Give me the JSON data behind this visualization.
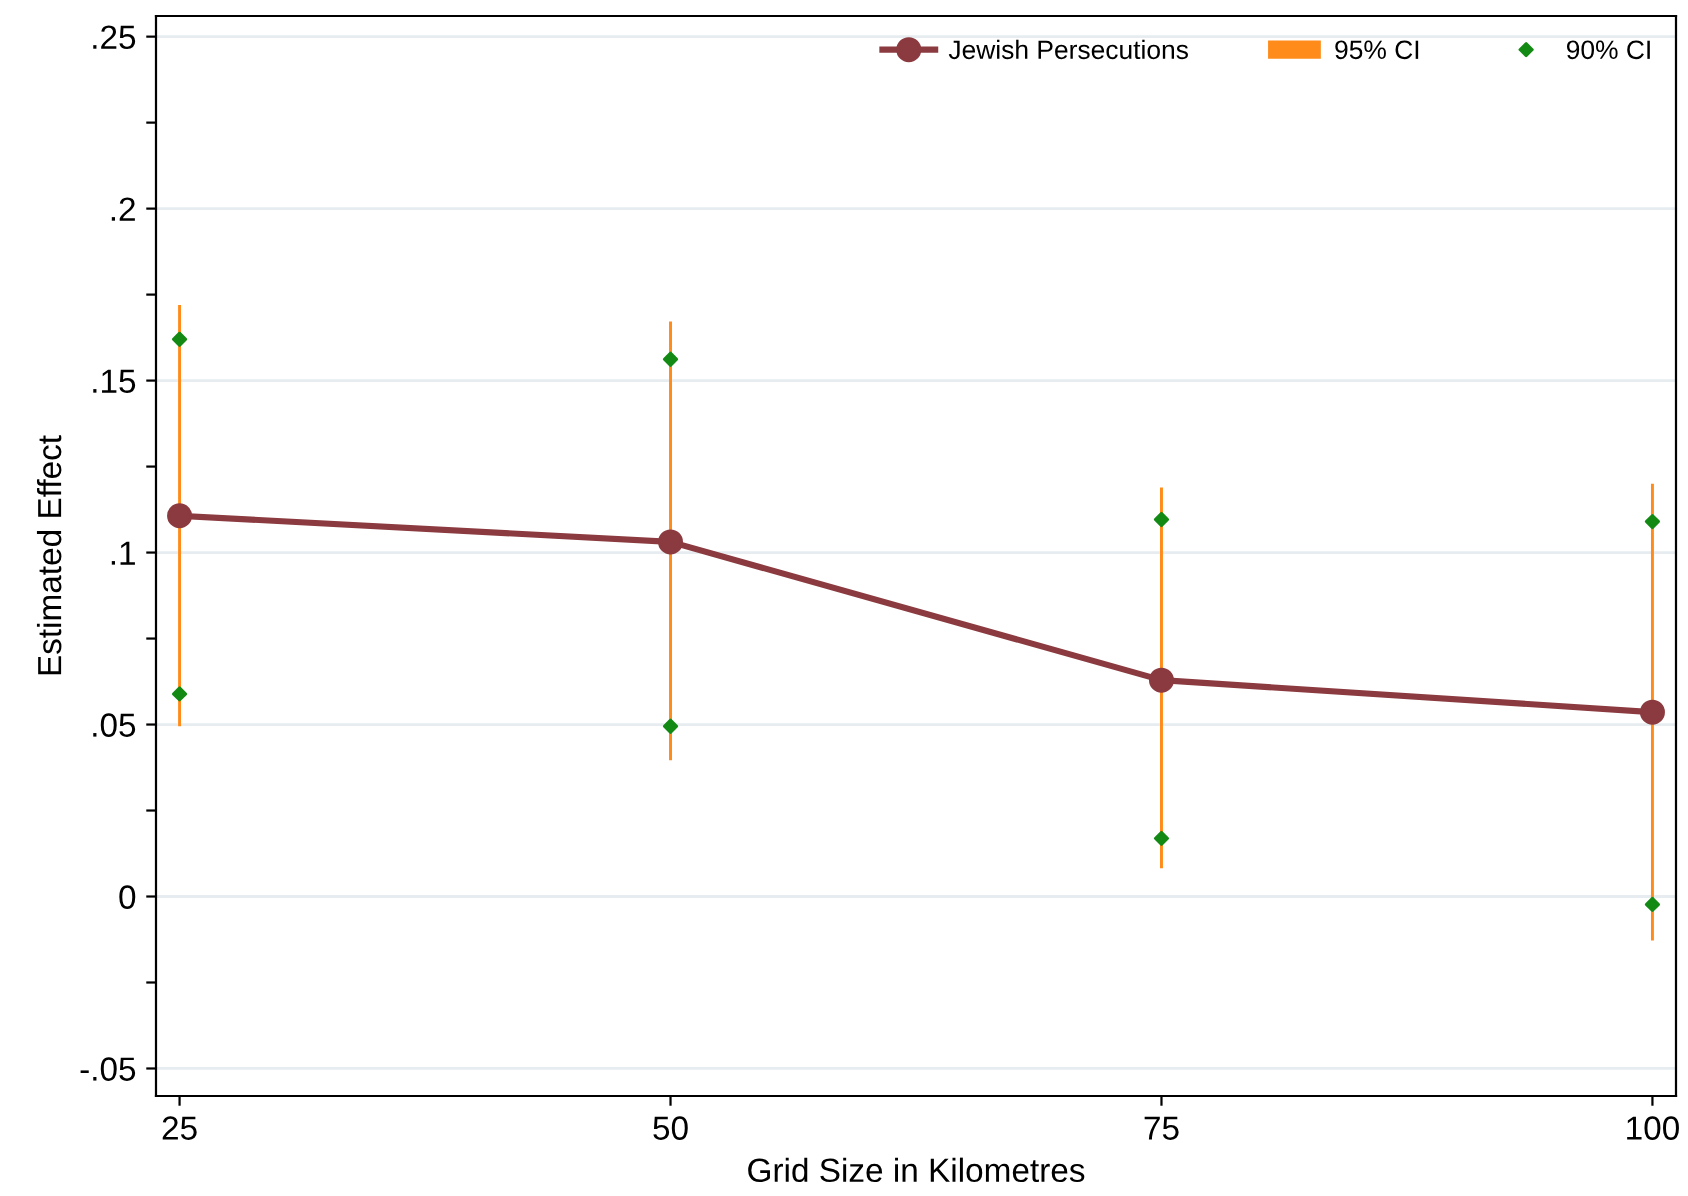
{
  "chart_data": {
    "type": "line",
    "xlabel": "Grid Size in Kilometres",
    "ylabel": "Estimated Effect",
    "x": [
      25,
      50,
      75,
      100
    ],
    "series": [
      {
        "name": "Jewish Persecutions",
        "color": "#8b3a3f",
        "marker": "circle",
        "values": [
          0.1107,
          0.1031,
          0.0629,
          0.0536
        ]
      },
      {
        "name": "95% CI",
        "type": "bar",
        "color": "#ff8c1a",
        "base": [
          0.0495,
          0.0396,
          0.0082,
          -0.0128
        ],
        "values": [
          0.1225,
          0.1276,
          0.1107,
          0.1328
        ]
      },
      {
        "name": "90% CI",
        "type": "scatter",
        "color": "#138a13",
        "marker": "diamond",
        "x": [
          25,
          25,
          50,
          50,
          75,
          75,
          100,
          100
        ],
        "values": [
          0.162,
          0.0589,
          0.1562,
          0.0495,
          0.1096,
          0.0169,
          0.109,
          -0.0023
        ]
      }
    ],
    "xlim": [
      23.8,
      101.2
    ],
    "xticks": [
      25,
      50,
      75,
      100
    ],
    "ylim": [
      -0.058,
      0.256
    ],
    "yticks": [
      {
        "value": -0.05,
        "label": "-.05"
      },
      {
        "value": -0.025,
        "label": null
      },
      {
        "value": 0,
        "label": "0"
      },
      {
        "value": 0.025,
        "label": null
      },
      {
        "value": 0.05,
        "label": ".05"
      },
      {
        "value": 0.075,
        "label": null
      },
      {
        "value": 0.1,
        "label": ".1"
      },
      {
        "value": 0.125,
        "label": null
      },
      {
        "value": 0.15,
        "label": ".15"
      },
      {
        "value": 0.175,
        "label": null
      },
      {
        "value": 0.2,
        "label": ".2"
      },
      {
        "value": 0.225,
        "label": null
      },
      {
        "value": 0.25,
        "label": ".25"
      }
    ],
    "grid": "y",
    "legend": "top"
  }
}
